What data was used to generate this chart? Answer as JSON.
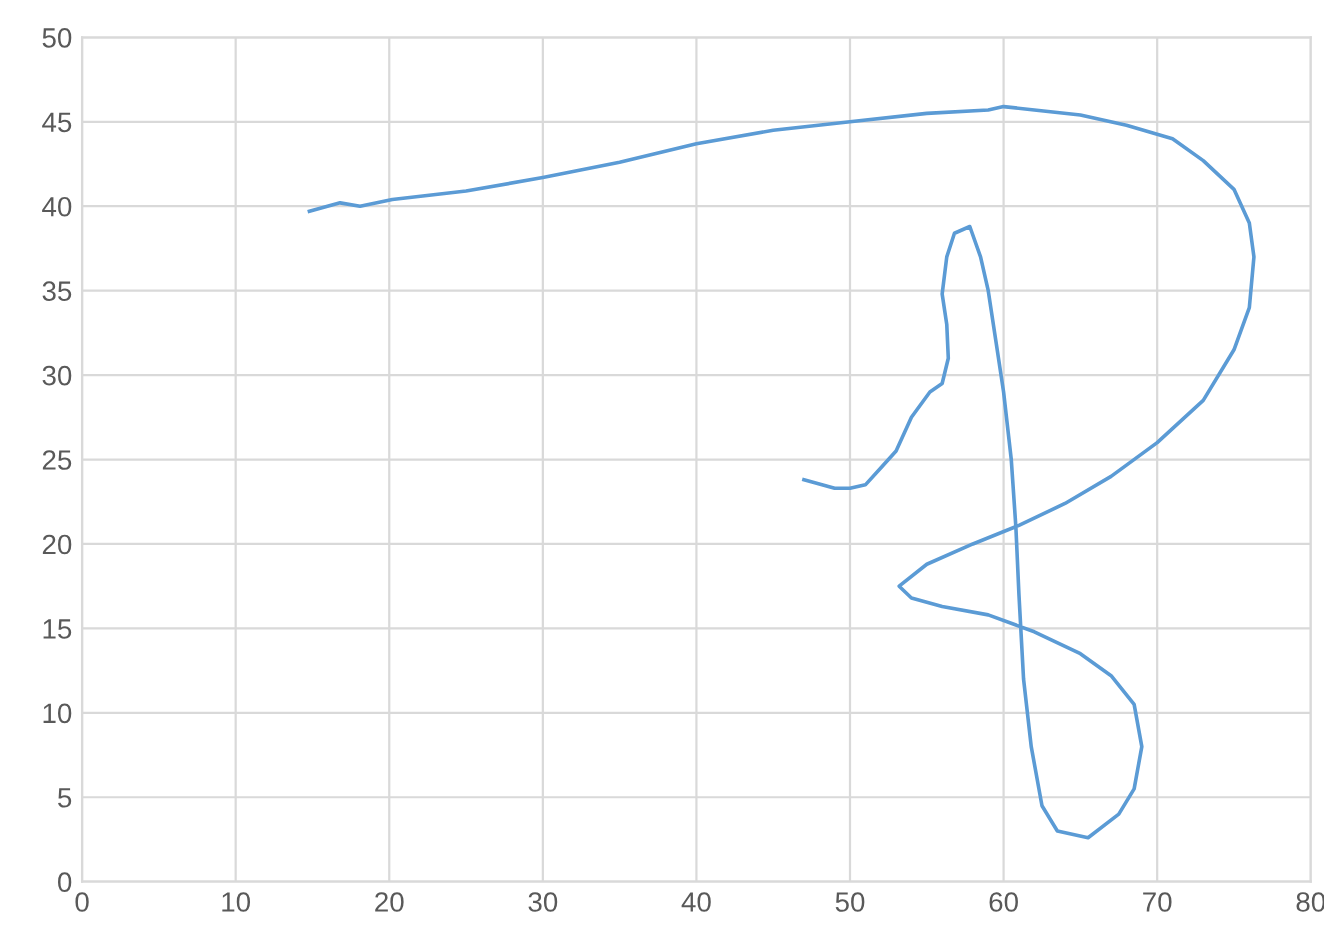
{
  "chart_data": {
    "type": "line",
    "xlim": [
      0,
      80
    ],
    "ylim": [
      0,
      50
    ],
    "xticks": [
      0,
      10,
      20,
      30,
      40,
      50,
      60,
      70,
      80
    ],
    "yticks": [
      0,
      5,
      10,
      15,
      20,
      25,
      30,
      35,
      40,
      45,
      50
    ],
    "grid": true,
    "marker": "none",
    "line_style": "solid",
    "series": [
      {
        "color": "#5b9bd5",
        "x": [
          14.8,
          16.8,
          18.1,
          20.2,
          25,
          30,
          35,
          40,
          45,
          50,
          55,
          59,
          60,
          62,
          65,
          68,
          71,
          73,
          75,
          76,
          76.3,
          76,
          75,
          73,
          70,
          67,
          64,
          61,
          58,
          55,
          53.2,
          54,
          56,
          59,
          62,
          65,
          67,
          68.5,
          69,
          68.5,
          67.5,
          65.5,
          63.5,
          62.5,
          61.8,
          61.3,
          61,
          60.8,
          60.5,
          60,
          59.5,
          59,
          58.5,
          57.8,
          56.8,
          56.3,
          56,
          56.3,
          56.4,
          56,
          55.2,
          54,
          53,
          52,
          51,
          50,
          49,
          47
        ],
        "values": [
          39.7,
          40.2,
          40.0,
          40.4,
          40.9,
          41.7,
          42.6,
          43.7,
          44.5,
          45.0,
          45.5,
          45.7,
          45.9,
          45.7,
          45.4,
          44.8,
          44.0,
          42.7,
          41.0,
          39,
          37,
          34,
          31.5,
          28.5,
          26,
          24,
          22.4,
          21.1,
          20.0,
          18.8,
          17.5,
          16.8,
          16.3,
          15.8,
          14.8,
          13.5,
          12.2,
          10.5,
          8,
          5.5,
          4,
          2.6,
          3,
          4.5,
          8,
          12,
          17,
          21,
          25,
          29,
          32,
          35,
          37,
          38.8,
          38.4,
          37,
          34.8,
          33,
          31,
          29.5,
          29.0,
          27.5,
          25.5,
          24.5,
          23.5,
          23.3,
          23.3,
          23.8
        ]
      }
    ]
  }
}
